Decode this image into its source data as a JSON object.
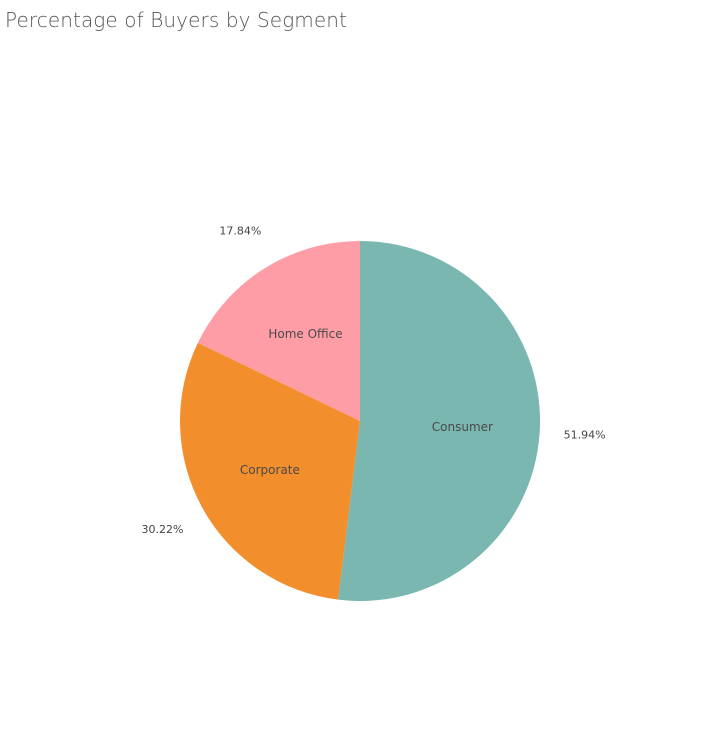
{
  "chart_data": {
    "type": "pie",
    "title": "Percentage of Buyers by Segment",
    "slices": [
      {
        "label": "Consumer",
        "value": 51.94,
        "value_label": "51.94%",
        "color": "#79b7b0"
      },
      {
        "label": "Corporate",
        "value": 30.22,
        "value_label": "30.22%",
        "color": "#f28e2c"
      },
      {
        "label": "Home Office",
        "value": 17.84,
        "value_label": "17.84%",
        "color": "#ff9da7"
      }
    ],
    "start": "top",
    "direction": "clockwise"
  }
}
